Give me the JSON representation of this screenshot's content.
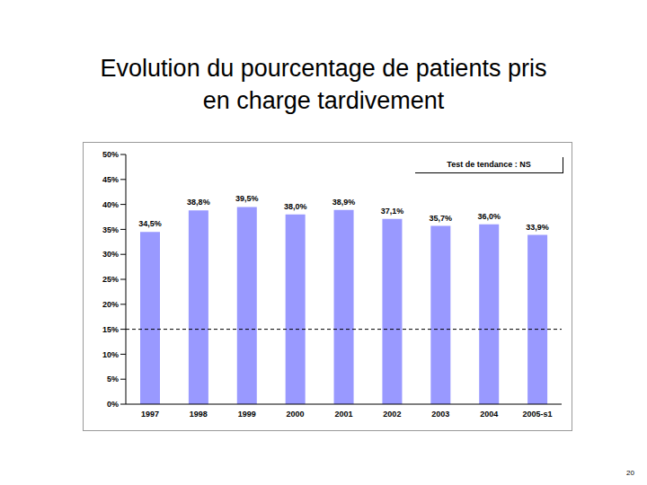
{
  "chart_data": {
    "type": "bar",
    "title": "Evolution du pourcentage de patients pris en charge tardivement",
    "categories": [
      "1997",
      "1998",
      "1999",
      "2000",
      "2001",
      "2002",
      "2003",
      "2004",
      "2005-s1"
    ],
    "values": [
      34.5,
      38.8,
      39.5,
      38.0,
      38.9,
      37.1,
      35.7,
      36.0,
      33.9
    ],
    "value_labels": [
      "34,5%",
      "38,8%",
      "39,5%",
      "38,0%",
      "38,9%",
      "37,1%",
      "35,7%",
      "36,0%",
      "33,9%"
    ],
    "data_labels": true,
    "color": "#9999ff",
    "ylim": [
      0,
      50
    ],
    "yticks": [
      {
        "value": 0,
        "label": "0%"
      },
      {
        "value": 5,
        "label": "5%"
      },
      {
        "value": 10,
        "label": "10%"
      },
      {
        "value": 15,
        "label": "15%"
      },
      {
        "value": 20,
        "label": "20%"
      },
      {
        "value": 25,
        "label": "25%"
      },
      {
        "value": 30,
        "label": "30%"
      },
      {
        "value": 35,
        "label": "35%"
      },
      {
        "value": 40,
        "label": "40%"
      },
      {
        "value": 45,
        "label": "45%"
      },
      {
        "value": 50,
        "label": "50%"
      }
    ],
    "grid": false,
    "hline": 15,
    "annotation": "Test de tendance : NS",
    "page_number": "20"
  }
}
